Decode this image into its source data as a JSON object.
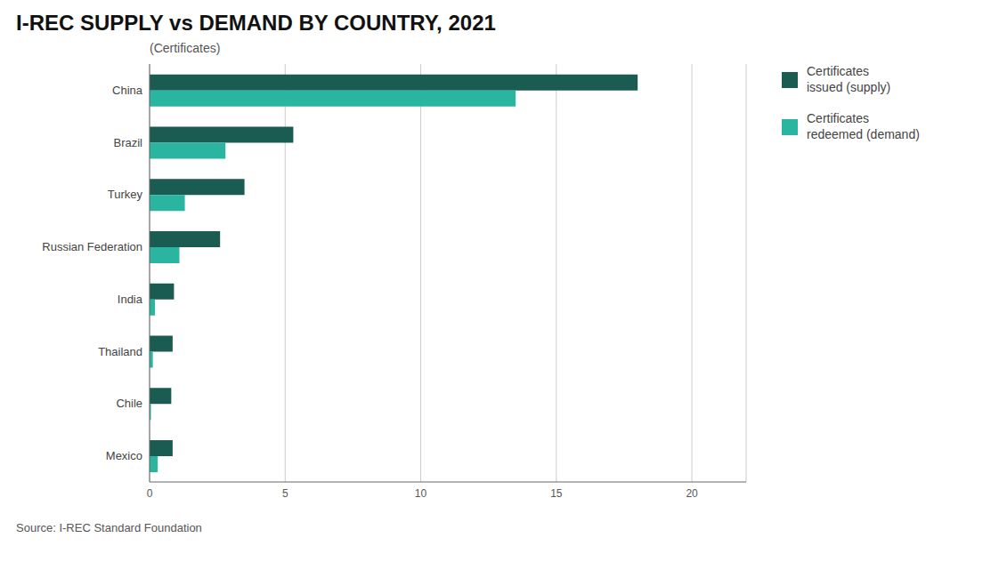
{
  "chart_data": {
    "type": "bar",
    "orientation": "horizontal",
    "title": "I-REC SUPPLY vs DEMAND BY COUNTRY, 2021",
    "subtitle": "(Certificates)",
    "source": "Source: I-REC Standard Foundation",
    "categories": [
      "China",
      "Brazil",
      "Turkey",
      "Russian Federation",
      "India",
      "Thailand",
      "Chile",
      "Mexico"
    ],
    "series": [
      {
        "name": "Certificates\nissued (supply)",
        "color": "#1a5c52",
        "values": [
          18.0,
          5.3,
          3.5,
          2.6,
          0.9,
          0.85,
          0.8,
          0.85
        ]
      },
      {
        "name": "Certificates\nredeemed (demand)",
        "color": "#2ab5a0",
        "values": [
          13.5,
          2.8,
          1.3,
          1.1,
          0.2,
          0.12,
          0.05,
          0.3
        ]
      }
    ],
    "xlim": [
      0,
      22
    ],
    "xticks": [
      0,
      5,
      10,
      15,
      20
    ],
    "grid": true,
    "legend": "upper right"
  }
}
